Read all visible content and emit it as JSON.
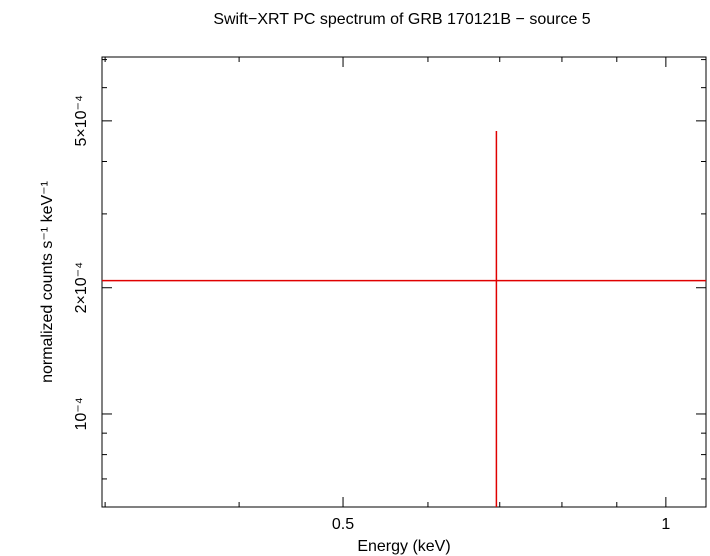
{
  "chart_data": {
    "type": "scatter",
    "title": "Swift−XRT PC spectrum of GRB 170121B − source 5",
    "x_label": "Energy (keV)",
    "y_label": "normalized counts s⁻¹ keV⁻¹",
    "xlog": true,
    "ylog": true,
    "xlim": [
      0.298,
      1.09
    ],
    "ylim": [
      6e-05,
      0.00071
    ],
    "xticks": [
      0.5,
      1
    ],
    "xminorticks": [
      0.3,
      0.4,
      0.6,
      0.7,
      0.8,
      0.9
    ],
    "yticks": [
      {
        "value": 0.0001,
        "label": "10⁻⁴"
      },
      {
        "value": 0.0002,
        "label": "2×10⁻⁴"
      },
      {
        "value": 0.0005,
        "label": "5×10⁻⁴"
      }
    ],
    "yminorticks": [
      7e-05,
      8e-05,
      9e-05,
      0.0003,
      0.0004,
      0.0006,
      0.0007
    ],
    "color": "#e00000",
    "x": [
      0.695
    ],
    "values": [
      0.000208
    ],
    "x_low": [
      0.298
    ],
    "x_high": [
      1.1
    ],
    "y_low": [
      5e-05
    ],
    "y_high": [
      0.000473
    ]
  }
}
